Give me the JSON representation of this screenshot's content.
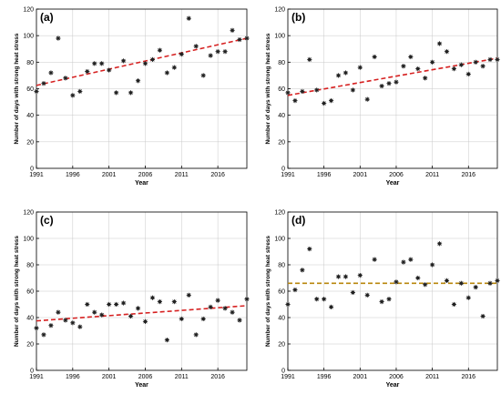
{
  "chart_data": [
    {
      "type": "scatter",
      "panel_label": "(a)",
      "xlabel": "Year",
      "ylabel": "Number of days with strong heat stress",
      "xlim": [
        1991,
        2020
      ],
      "ylim": [
        0,
        120
      ],
      "xticks": [
        1991,
        1996,
        2001,
        2006,
        2011,
        2016
      ],
      "yticks": [
        0,
        20,
        40,
        60,
        80,
        100,
        120
      ],
      "x": [
        1991,
        1992,
        1993,
        1994,
        1995,
        1996,
        1997,
        1998,
        1999,
        2000,
        2001,
        2002,
        2003,
        2004,
        2005,
        2006,
        2007,
        2008,
        2009,
        2010,
        2011,
        2012,
        2013,
        2014,
        2015,
        2016,
        2017,
        2018,
        2019,
        2020
      ],
      "y": [
        58,
        64,
        72,
        98,
        68,
        55,
        58,
        73,
        79,
        79,
        74,
        57,
        81,
        57,
        66,
        79,
        82,
        89,
        72,
        76,
        86,
        113,
        92,
        70,
        85,
        88,
        88,
        104,
        97,
        98
      ],
      "trend": [
        62.5,
        98.0
      ]
    },
    {
      "type": "scatter",
      "panel_label": "(b)",
      "xlabel": "Year",
      "ylabel": "Number of days with strong heat stress",
      "xlim": [
        1991,
        2020
      ],
      "ylim": [
        0,
        120
      ],
      "xticks": [
        1991,
        1996,
        2001,
        2006,
        2011,
        2016
      ],
      "yticks": [
        0,
        20,
        40,
        60,
        80,
        100,
        120
      ],
      "x": [
        1991,
        1992,
        1993,
        1994,
        1995,
        1996,
        1997,
        1998,
        1999,
        2000,
        2001,
        2002,
        2003,
        2004,
        2005,
        2006,
        2007,
        2008,
        2009,
        2010,
        2011,
        2012,
        2013,
        2014,
        2015,
        2016,
        2017,
        2018,
        2019,
        2020
      ],
      "y": [
        57,
        51,
        58,
        82,
        59,
        49,
        51,
        70,
        72,
        59,
        76,
        52,
        84,
        62,
        64,
        65,
        77,
        84,
        75,
        68,
        80,
        94,
        88,
        75,
        78,
        71,
        80,
        77,
        82,
        82
      ],
      "trend": [
        55.0,
        83.0
      ]
    },
    {
      "type": "scatter",
      "panel_label": "(c)",
      "xlabel": "Year",
      "ylabel": "Number of days with strong heat stress",
      "xlim": [
        1991,
        2020
      ],
      "ylim": [
        0,
        120
      ],
      "xticks": [
        1991,
        1996,
        2001,
        2006,
        2011,
        2016
      ],
      "yticks": [
        0,
        20,
        40,
        60,
        80,
        100,
        120
      ],
      "x": [
        1991,
        1992,
        1993,
        1994,
        1995,
        1996,
        1997,
        1998,
        1999,
        2000,
        2001,
        2002,
        2003,
        2004,
        2005,
        2006,
        2007,
        2008,
        2009,
        2010,
        2011,
        2012,
        2013,
        2014,
        2015,
        2016,
        2017,
        2018,
        2019,
        2020
      ],
      "y": [
        32,
        27,
        34,
        44,
        38,
        36,
        33,
        50,
        44,
        42,
        50,
        50,
        51,
        41,
        47,
        37,
        55,
        52,
        23,
        52,
        39,
        57,
        27,
        39,
        48,
        53,
        47,
        44,
        38,
        54
      ],
      "trend": [
        37.5,
        49.0
      ]
    },
    {
      "type": "scatter",
      "panel_label": "(d)",
      "xlabel": "Year",
      "ylabel": "Number of days with strong heat stress",
      "xlim": [
        1991,
        2020
      ],
      "ylim": [
        0,
        120
      ],
      "xticks": [
        1991,
        1996,
        2001,
        2006,
        2011,
        2016
      ],
      "yticks": [
        0,
        20,
        40,
        60,
        80,
        100,
        120
      ],
      "x": [
        1991,
        1992,
        1993,
        1994,
        1995,
        1996,
        1997,
        1998,
        1999,
        2000,
        2001,
        2002,
        2003,
        2004,
        2005,
        2006,
        2007,
        2008,
        2009,
        2010,
        2011,
        2012,
        2013,
        2014,
        2015,
        2016,
        2017,
        2018,
        2019,
        2020
      ],
      "y": [
        50,
        61,
        76,
        92,
        54,
        54,
        48,
        71,
        71,
        59,
        72,
        57,
        84,
        52,
        54,
        67,
        82,
        84,
        70,
        65,
        80,
        96,
        68,
        50,
        66,
        55,
        63,
        41,
        66,
        68
      ],
      "trend": [
        66.0,
        66.0
      ]
    }
  ],
  "colors": {
    "marker": "#222222",
    "trend_increasing": "#d62020",
    "trend_flat": "#b8860b",
    "axis": "#000000",
    "grid": "#c8c8c8"
  }
}
